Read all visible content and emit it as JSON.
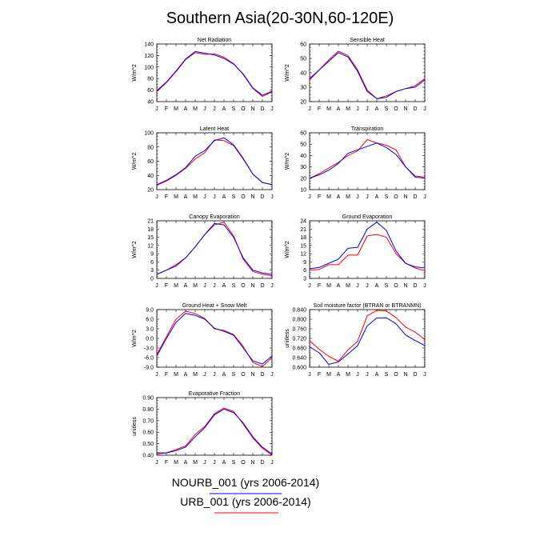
{
  "figure": {
    "title": "Southern Asia(20-30N,60-120E)",
    "legend": [
      {
        "label": "NOURB_001 (yrs 2006-2014)",
        "color": "#0000ff"
      },
      {
        "label": "URB_001 (yrs 2006-2014)",
        "color": "#ff0000"
      }
    ],
    "colors": {
      "series_blue": "#0000ff",
      "series_red": "#ff0000",
      "axes": "#000000"
    }
  },
  "chart_data": [
    {
      "type": "line",
      "title": "Net Radiation",
      "ylabel": "W/m^2",
      "x": [
        "J",
        "F",
        "M",
        "A",
        "M",
        "J",
        "J",
        "A",
        "S",
        "O",
        "N",
        "D",
        "J"
      ],
      "ylim": [
        40,
        140
      ],
      "yticks": [
        "40",
        "60",
        "80",
        "100",
        "120",
        "140"
      ],
      "series": [
        {
          "name": "NOURB_001 (yrs 2006-2014)",
          "values": [
            59,
            74,
            93,
            114,
            127,
            124,
            121,
            115,
            105,
            88,
            64,
            51,
            58
          ]
        },
        {
          "name": "URB_001 (yrs 2006-2014)",
          "values": [
            57,
            73,
            92,
            113,
            125,
            122,
            123,
            117,
            106,
            87,
            63,
            49,
            57
          ]
        }
      ]
    },
    {
      "type": "line",
      "title": "Sensible Heat",
      "ylabel": "W/m^2",
      "x": [
        "J",
        "F",
        "M",
        "A",
        "M",
        "J",
        "J",
        "A",
        "S",
        "O",
        "N",
        "D",
        "J"
      ],
      "ylim": [
        20,
        60
      ],
      "yticks": [
        "20",
        "30",
        "40",
        "50",
        "60"
      ],
      "series": [
        {
          "name": "NOURB_001 (yrs 2006-2014)",
          "values": [
            36,
            42,
            48,
            54,
            51,
            41,
            27,
            22,
            23,
            27,
            29,
            30,
            35
          ]
        },
        {
          "name": "URB_001 (yrs 2006-2014)",
          "values": [
            35,
            42,
            49,
            55,
            52,
            42,
            28,
            22,
            24,
            27,
            29,
            31,
            36
          ]
        }
      ]
    },
    {
      "type": "line",
      "title": "Latent Heat",
      "ylabel": "W/m^2",
      "x": [
        "J",
        "F",
        "M",
        "A",
        "M",
        "J",
        "J",
        "A",
        "S",
        "O",
        "N",
        "D",
        "J"
      ],
      "ylim": [
        20,
        100
      ],
      "yticks": [
        "20",
        "40",
        "60",
        "80",
        "100"
      ],
      "series": [
        {
          "name": "NOURB_001 (yrs 2006-2014)",
          "values": [
            27,
            33,
            41,
            51,
            67,
            75,
            89,
            93,
            83,
            64,
            42,
            30,
            27
          ]
        },
        {
          "name": "URB_001 (yrs 2006-2014)",
          "values": [
            26,
            32,
            40,
            50,
            63,
            72,
            90,
            89,
            82,
            63,
            42,
            30,
            27
          ]
        }
      ]
    },
    {
      "type": "line",
      "title": "Transpiration",
      "ylabel": "W/m^2",
      "x": [
        "J",
        "F",
        "M",
        "A",
        "M",
        "J",
        "J",
        "A",
        "S",
        "O",
        "N",
        "D",
        "J"
      ],
      "ylim": [
        10,
        60
      ],
      "yticks": [
        "10",
        "20",
        "30",
        "40",
        "50",
        "60"
      ],
      "series": [
        {
          "name": "NOURB_001 (yrs 2006-2014)",
          "values": [
            20,
            23,
            27,
            33,
            42,
            45,
            48,
            51,
            47,
            41,
            30,
            21,
            20
          ]
        },
        {
          "name": "URB_001 (yrs 2006-2014)",
          "values": [
            20,
            24,
            29,
            34,
            40,
            44,
            54,
            51,
            49,
            45,
            30,
            22,
            21
          ]
        }
      ]
    },
    {
      "type": "line",
      "title": "Canopy Evaporation",
      "ylabel": "W/m^2",
      "x": [
        "J",
        "F",
        "M",
        "A",
        "M",
        "J",
        "J",
        "A",
        "S",
        "O",
        "N",
        "D",
        "J"
      ],
      "ylim": [
        0,
        21
      ],
      "yticks": [
        "0",
        "3",
        "6",
        "9",
        "12",
        "15",
        "18",
        "21"
      ],
      "series": [
        {
          "name": "NOURB_001 (yrs 2006-2014)",
          "values": [
            1.5,
            3,
            4.5,
            7.5,
            11.5,
            16,
            20,
            19.5,
            15,
            7.5,
            3,
            2,
            1.5
          ]
        },
        {
          "name": "URB_001 (yrs 2006-2014)",
          "values": [
            1.5,
            3,
            5,
            7.5,
            11.5,
            16,
            19.5,
            20.5,
            15.5,
            7,
            2.5,
            1.5,
            1
          ]
        }
      ]
    },
    {
      "type": "line",
      "title": "Ground Evaporation",
      "ylabel": "W/m^2",
      "x": [
        "J",
        "F",
        "M",
        "A",
        "M",
        "J",
        "J",
        "A",
        "S",
        "O",
        "N",
        "D",
        "J"
      ],
      "ylim": [
        3,
        24
      ],
      "yticks": [
        "3",
        "6",
        "9",
        "12",
        "15",
        "18",
        "21",
        "24"
      ],
      "series": [
        {
          "name": "NOURB_001 (yrs 2006-2014)",
          "values": [
            6.5,
            7,
            8.5,
            10,
            14,
            14.3,
            21,
            23.5,
            20.5,
            13,
            8.5,
            7.2,
            6.8
          ]
        },
        {
          "name": "URB_001 (yrs 2006-2014)",
          "values": [
            6,
            6.3,
            8,
            8,
            11.5,
            11.5,
            18.5,
            19,
            18,
            12,
            8.5,
            6.8,
            5.8
          ]
        }
      ]
    },
    {
      "type": "line",
      "title": "Ground Heat + Snow Melt",
      "ylabel": "W/m^2",
      "x": [
        "J",
        "F",
        "M",
        "A",
        "M",
        "J",
        "J",
        "A",
        "S",
        "O",
        "N",
        "D",
        "J"
      ],
      "ylim": [
        -9,
        9
      ],
      "yticks": [
        "-9.0",
        "-6.0",
        "-3.0",
        "0.0",
        "3.0",
        "6.0",
        "9.0"
      ],
      "series": [
        {
          "name": "NOURB_001 (yrs 2006-2014)",
          "values": [
            -5.5,
            0,
            5,
            7.8,
            7.2,
            6,
            3.2,
            2.2,
            1,
            -3,
            -7,
            -8,
            -5.5
          ]
        },
        {
          "name": "URB_001 (yrs 2006-2014)",
          "values": [
            -5,
            0.5,
            6,
            8.5,
            7.8,
            6.2,
            3,
            2.5,
            1.2,
            -2.5,
            -7.5,
            -8.8,
            -6
          ]
        }
      ]
    },
    {
      "type": "line",
      "title": "Soil moisture factor (BTRAN or BTRANMN)",
      "ylabel": "unitless",
      "x": [
        "J",
        "F",
        "M",
        "A",
        "M",
        "J",
        "J",
        "A",
        "S",
        "O",
        "N",
        "D",
        "J"
      ],
      "ylim": [
        0.6,
        0.84
      ],
      "yticks": [
        "0.600",
        "0.640",
        "0.680",
        "0.720",
        "0.760",
        "0.800",
        "0.840"
      ],
      "series": [
        {
          "name": "NOURB_001 (yrs 2006-2014)",
          "values": [
            0.685,
            0.66,
            0.612,
            0.622,
            0.655,
            0.69,
            0.772,
            0.805,
            0.806,
            0.781,
            0.734,
            0.711,
            0.69
          ]
        },
        {
          "name": "URB_001 (yrs 2006-2014)",
          "values": [
            0.71,
            0.675,
            0.645,
            0.625,
            0.672,
            0.708,
            0.814,
            0.837,
            0.834,
            0.806,
            0.767,
            0.746,
            0.715
          ]
        }
      ]
    },
    {
      "type": "line",
      "title": "Evaporative Fraction",
      "ylabel": "unitless",
      "x": [
        "J",
        "F",
        "M",
        "A",
        "M",
        "J",
        "J",
        "A",
        "S",
        "O",
        "N",
        "D",
        "J"
      ],
      "ylim": [
        0.4,
        0.9
      ],
      "yticks": [
        "0.40",
        "0.50",
        "0.60",
        "0.70",
        "0.80",
        "0.90"
      ],
      "series": [
        {
          "name": "NOURB_001 (yrs 2006-2014)",
          "values": [
            0.42,
            0.42,
            0.44,
            0.47,
            0.56,
            0.64,
            0.75,
            0.8,
            0.77,
            0.68,
            0.56,
            0.47,
            0.41
          ]
        },
        {
          "name": "URB_001 (yrs 2006-2014)",
          "values": [
            0.41,
            0.42,
            0.45,
            0.48,
            0.58,
            0.65,
            0.76,
            0.81,
            0.78,
            0.67,
            0.55,
            0.46,
            0.4
          ]
        }
      ]
    }
  ]
}
